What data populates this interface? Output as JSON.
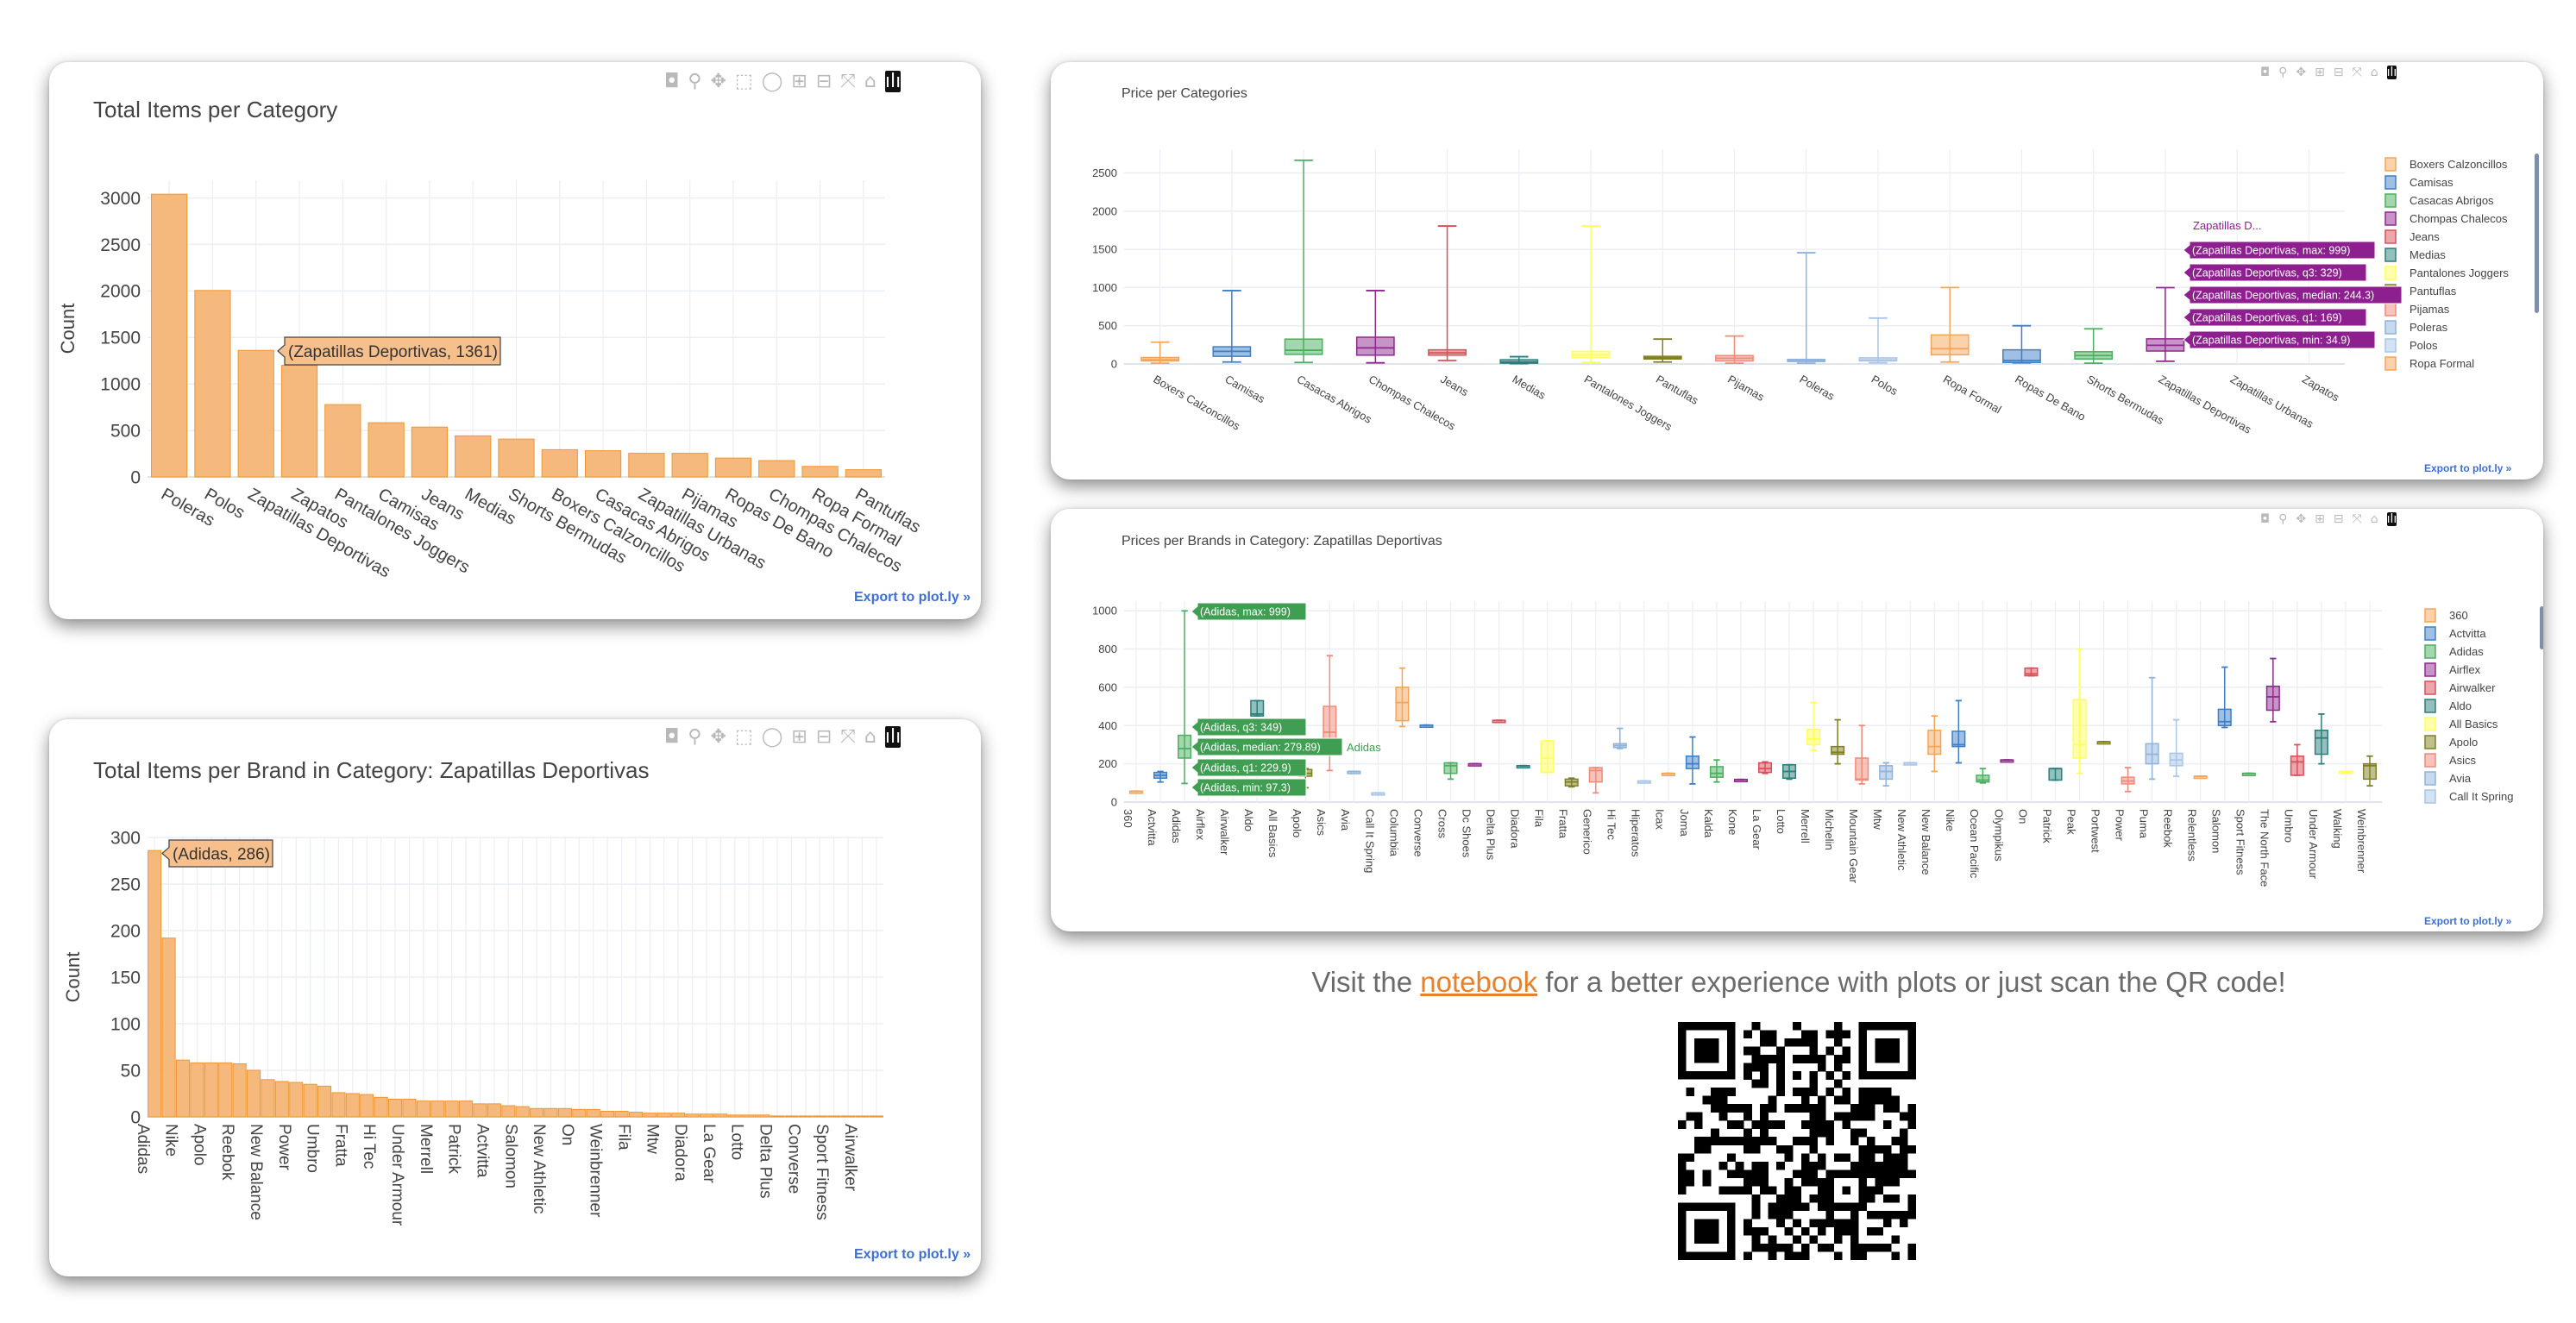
{
  "palette": [
    "#f5a55a",
    "#3f7fc8",
    "#4caf5f",
    "#8e2a8e",
    "#d9505a",
    "#2a7f7a",
    "#ffff5a",
    "#808020",
    "#f08a7a",
    "#8fb3dc",
    "#a9c6e8"
  ],
  "bar_color": "#f5b97e",
  "bar_edge": "#f0962e",
  "toolbar": {
    "camera": "◘",
    "zoom": "⚲",
    "pan": "✥",
    "select": "⬚",
    "lasso": "◯",
    "zoom_in": "⊞",
    "zoom_out": "⊟",
    "autoscale": "⤧",
    "home": "⌂",
    "logo": "ılı"
  },
  "export_label": "Export to plot.ly »",
  "footer": {
    "before": "Visit the ",
    "link": "notebook",
    "after": " for a better experience with plots or just scan the QR code!"
  },
  "chart_data": [
    {
      "type": "bar",
      "title": "Total Items per Category",
      "ylabel": "Count",
      "xlabel": "",
      "ylim": [
        0,
        3190
      ],
      "yticks": [
        0,
        500,
        1000,
        1500,
        2000,
        2500,
        3000
      ],
      "grid": true,
      "categories": [
        "Poleras",
        "Polos",
        "Zapatillas Deportivas",
        "Zapatos",
        "Pantalones Joggers",
        "Camisas",
        "Jeans",
        "Medias",
        "Shorts Bermudas",
        "Boxers Calzoncillos",
        "Casacas Abrigos",
        "Zapatillas Urbanas",
        "Pijamas",
        "Ropas De Bano",
        "Chompas Chalecos",
        "Ropa Formal",
        "Pantuflas"
      ],
      "values": [
        3040,
        2005,
        1361,
        1200,
        778,
        583,
        536,
        442,
        407,
        293,
        282,
        254,
        254,
        203,
        176,
        113,
        78
      ],
      "tooltip": "(Zapatillas Deportivas, 1361)"
    },
    {
      "type": "bar",
      "title": "Total Items per Brand in Category: Zapatillas Deportivas",
      "ylabel": "Count",
      "xlabel": "",
      "ylim": [
        0,
        301
      ],
      "yticks": [
        0,
        50,
        100,
        150,
        200,
        250,
        300
      ],
      "grid": true,
      "categories": [
        "Adidas",
        "",
        "Nike",
        "",
        "Apolo",
        "",
        "Reebok",
        "",
        "New Balance",
        "",
        "Power",
        "",
        "Umbro",
        "",
        "Fratta",
        "",
        "Hi Tec",
        "",
        "Under Armour",
        "",
        "Merrell",
        "",
        "Patrick",
        "",
        "Actvitta",
        "",
        "Salomon",
        "",
        "New Athletic",
        "",
        "On",
        "",
        "Weinbrenner",
        "",
        "Fila",
        "",
        "Mtw",
        "",
        "Diadora",
        "",
        "La Gear",
        "",
        "Lotto",
        "",
        "Delta Plus",
        "",
        "Converse",
        "",
        "Sport Fitness",
        "",
        "Airwalker",
        ""
      ],
      "values": [
        286,
        192,
        61,
        58,
        58,
        58,
        57,
        50,
        40,
        38,
        37,
        35,
        33,
        26,
        25,
        24,
        21,
        19,
        19,
        17,
        17,
        17,
        17,
        14,
        14,
        12,
        11,
        9,
        9,
        9,
        8,
        8,
        6,
        6,
        5,
        4,
        4,
        4,
        3,
        3,
        3,
        2,
        2,
        2,
        1,
        1,
        1,
        1,
        1,
        1,
        1,
        1
      ],
      "tooltip": "(Adidas, 286)"
    },
    {
      "type": "box",
      "title": "Price per Categories",
      "ylim": [
        0,
        2810
      ],
      "yticks": [
        0,
        500,
        1000,
        1500,
        2000,
        2500
      ],
      "grid": true,
      "legend_position": "right",
      "stats_order": [
        "min",
        "q1",
        "median",
        "q3",
        "max"
      ],
      "categories": [
        "Boxers Calzoncillos",
        "Camisas",
        "Casacas Abrigos",
        "Chompas Chalecos",
        "Jeans",
        "Medias",
        "Pantalones Joggers",
        "Pantuflas",
        "Pijamas",
        "Poleras",
        "Polos",
        "Ropa Formal",
        "Ropas De Bano",
        "Shorts Bermudas",
        "Zapatillas Deportivas",
        "Zapatillas Urbanas",
        "Zapatos"
      ],
      "boxes": [
        [
          10,
          40,
          55,
          85,
          285
        ],
        [
          25,
          100,
          165,
          225,
          960
        ],
        [
          20,
          125,
          180,
          325,
          2665
        ],
        [
          15,
          115,
          210,
          350,
          960
        ],
        [
          45,
          115,
          145,
          185,
          1805
        ],
        [
          5,
          10,
          25,
          55,
          95
        ],
        [
          20,
          80,
          120,
          165,
          1805
        ],
        [
          25,
          65,
          80,
          100,
          325
        ],
        [
          10,
          40,
          75,
          110,
          365
        ],
        [
          10,
          35,
          45,
          60,
          1455
        ],
        [
          15,
          40,
          50,
          80,
          600
        ],
        [
          25,
          120,
          200,
          380,
          1000
        ],
        [
          15,
          20,
          45,
          185,
          500
        ],
        [
          10,
          65,
          110,
          160,
          460
        ],
        [
          34.9,
          169,
          244.3,
          329,
          999
        ],
        null,
        null
      ],
      "legend": [
        "Boxers Calzoncillos",
        "Camisas",
        "Casacas Abrigos",
        "Chompas Chalecos",
        "Jeans",
        "Medias",
        "Pantalones Joggers",
        "Pantuflas",
        "Pijamas",
        "Poleras",
        "Polos",
        "Ropa Formal"
      ],
      "tooltips": [
        "(Zapatillas Deportivas, max: 999)",
        "(Zapatillas Deportivas, q3: 329)",
        "(Zapatillas Deportivas, median: 244.3)",
        "(Zapatillas Deportivas, q1: 169)",
        "(Zapatillas Deportivas, min: 34.9)"
      ],
      "hover_trace_label": "Zapatillas D..."
    },
    {
      "type": "box",
      "title": "Prices per Brands in Category: Zapatillas Deportivas",
      "ylim": [
        0,
        1050
      ],
      "yticks": [
        0,
        200,
        400,
        600,
        800,
        1000
      ],
      "grid": true,
      "legend_position": "right",
      "stats_order": [
        "min",
        "q1",
        "median",
        "q3",
        "max"
      ],
      "categories": [
        "360",
        "Actvitta",
        "Adidas",
        "Airflex",
        "Airwalker",
        "Aldo",
        "All Basics",
        "Apolo",
        "Asics",
        "Avia",
        "Call It Spring",
        "Columbia",
        "Converse",
        "Cross",
        "Dc Shoes",
        "Delta Plus",
        "Diadora",
        "Fila",
        "Fratta",
        "Generico",
        "Hi Tec",
        "Hiperatos",
        "Icax",
        "Joma",
        "Kalda",
        "Kone",
        "La Gear",
        "Lotto",
        "Merrell",
        "Michelin",
        "Mountain Gear",
        "Mtw",
        "New Athletic",
        "New Balance",
        "Nike",
        "Ocean Pacific",
        "Olympikus",
        "On",
        "Patrick",
        "Peak",
        "Portwest",
        "Power",
        "Puma",
        "Reebok",
        "Relentless",
        "Salomon",
        "Sport Fitness",
        "The North Face",
        "Umbro",
        "Under Armour",
        "Walking",
        "Weinbrenner"
      ],
      "boxes": [
        [
          57,
          57,
          57,
          57,
          57
        ],
        [
          105,
          125,
          140,
          155,
          160
        ],
        [
          97.3,
          229.9,
          279.89,
          349,
          999
        ],
        null,
        null,
        [
          450,
          450,
          460,
          530,
          530
        ],
        null,
        [
          75,
          135,
          150,
          170,
          175
        ],
        [
          165,
          250,
          365,
          500,
          765
        ],
        [
          160,
          160,
          160,
          160,
          160
        ],
        [
          48,
          48,
          48,
          48,
          48
        ],
        [
          395,
          425,
          520,
          600,
          700
        ],
        [
          402,
          402,
          402,
          402,
          402
        ],
        [
          120,
          150,
          190,
          205,
          205
        ],
        [
          200,
          200,
          200,
          200,
          200
        ],
        [
          427,
          427,
          427,
          427,
          427
        ],
        [
          190,
          190,
          190,
          190,
          190
        ],
        [
          155,
          155,
          230,
          320,
          320
        ],
        [
          80,
          85,
          105,
          120,
          125
        ],
        [
          48,
          105,
          165,
          180,
          180
        ],
        [
          280,
          285,
          295,
          305,
          385
        ],
        [
          110,
          110,
          110,
          110,
          110
        ],
        [
          150,
          150,
          150,
          150,
          150
        ],
        [
          95,
          175,
          200,
          240,
          340
        ],
        [
          105,
          130,
          150,
          185,
          220
        ],
        [
          118,
          118,
          118,
          118,
          118
        ],
        [
          150,
          155,
          175,
          205,
          210
        ],
        [
          120,
          125,
          160,
          195,
          195
        ],
        [
          270,
          300,
          330,
          380,
          520
        ],
        [
          200,
          250,
          260,
          290,
          430
        ],
        [
          95,
          115,
          120,
          230,
          400
        ],
        [
          85,
          120,
          160,
          190,
          205
        ],
        [
          205,
          205,
          205,
          205,
          205
        ],
        [
          160,
          250,
          290,
          375,
          450
        ],
        [
          205,
          290,
          300,
          370,
          530
        ],
        [
          100,
          105,
          115,
          140,
          175
        ],
        [
          220,
          220,
          220,
          220,
          220
        ],
        [
          660,
          660,
          670,
          700,
          700
        ],
        [
          115,
          115,
          175,
          175,
          175
        ],
        [
          150,
          230,
          300,
          535,
          800
        ],
        [
          315,
          315,
          315,
          315,
          315
        ],
        [
          55,
          95,
          110,
          130,
          180
        ],
        [
          120,
          200,
          250,
          305,
          650
        ],
        [
          135,
          190,
          220,
          255,
          430
        ],
        [
          135,
          135,
          135,
          135,
          135
        ],
        [
          390,
          400,
          420,
          485,
          705
        ],
        [
          150,
          150,
          150,
          150,
          150
        ],
        [
          420,
          480,
          550,
          605,
          750
        ],
        [
          140,
          140,
          210,
          240,
          300
        ],
        [
          200,
          250,
          335,
          375,
          460
        ],
        [
          160,
          160,
          160,
          160,
          160
        ],
        [
          85,
          120,
          190,
          200,
          240
        ]
      ],
      "legend": [
        "360",
        "Actvitta",
        "Adidas",
        "Airflex",
        "Airwalker",
        "Aldo",
        "All Basics",
        "Apolo",
        "Asics",
        "Avia",
        "Call It Spring"
      ],
      "tooltips": [
        "(Adidas, max: 999)",
        "(Adidas, q3: 349)",
        "(Adidas, median: 279.89)",
        "(Adidas, q1: 229.9)",
        "(Adidas, min: 97.3)"
      ],
      "hover_trace_label": "Adidas"
    }
  ]
}
